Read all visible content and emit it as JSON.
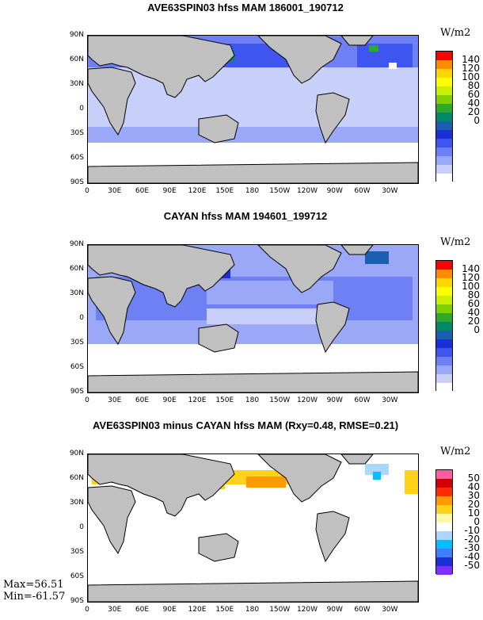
{
  "panels": [
    {
      "title": "AVE63SPIN03 hfss MAM 186001_190712",
      "legend": {
        "unit": "W/m2",
        "labels": [
          "140",
          "120",
          "100",
          "80",
          "60",
          "40",
          "20",
          "0"
        ],
        "colors": [
          "#ff0000",
          "#ff8c00",
          "#ffd700",
          "#ffff00",
          "#c8f000",
          "#7fd000",
          "#2fa82f",
          "#008a6a",
          "#1c5fb0",
          "#1a2fd8",
          "#3f55f0",
          "#6f80f4",
          "#9ba8f7",
          "#c8cff9",
          "#ffffff"
        ]
      }
    },
    {
      "title": "CAYAN hfss MAM 194601_199712",
      "legend": {
        "unit": "W/m2",
        "labels": [
          "140",
          "120",
          "100",
          "80",
          "60",
          "40",
          "20",
          "0"
        ],
        "colors": [
          "#ff0000",
          "#ff8c00",
          "#ffd700",
          "#ffff00",
          "#c8f000",
          "#7fd000",
          "#2fa82f",
          "#008a6a",
          "#1c5fb0",
          "#1a2fd8",
          "#3f55f0",
          "#6f80f4",
          "#9ba8f7",
          "#c8cff9",
          "#ffffff"
        ]
      }
    },
    {
      "title": "AVE63SPIN03 minus CAYAN hfss MAM (Rxy=0.48, RMSE=0.21)",
      "legend": {
        "unit": "W/m2",
        "labels": [
          "50",
          "40",
          "30",
          "20",
          "10",
          "0",
          "-10",
          "-20",
          "-30",
          "-40",
          "-50"
        ],
        "colors": [
          "#ff5fa0",
          "#d00000",
          "#ff2a00",
          "#ff9a00",
          "#ffd21a",
          "#fff7a8",
          "#ffffff",
          "#a8d8ff",
          "#00bfff",
          "#3f7fff",
          "#1a2fd8",
          "#7f2fff"
        ]
      }
    }
  ],
  "lat_labels": [
    "90N",
    "60N",
    "30N",
    "0",
    "30S",
    "60S",
    "90S"
  ],
  "lon_labels": [
    "0",
    "30E",
    "60E",
    "90E",
    "120E",
    "150E",
    "180",
    "150W",
    "120W",
    "90W",
    "60W",
    "30W"
  ],
  "stats": {
    "max": "Max=56.51",
    "min": "Min=-61.57"
  },
  "land_color": "#c0c0c0"
}
